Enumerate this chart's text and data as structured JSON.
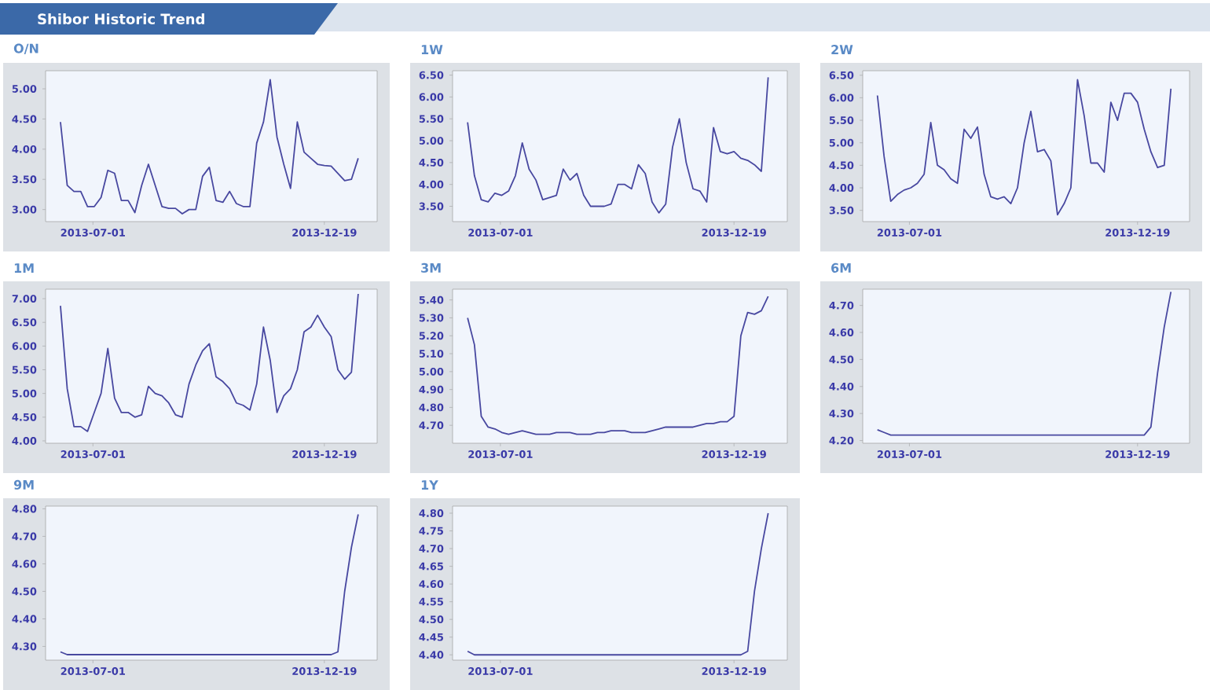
{
  "chart_data": [
    {
      "type": "other",
      "title": "Shibor Historic Trend"
    },
    {
      "type": "line",
      "title": "O/N",
      "color": "#4848a0",
      "marker": "none",
      "xlim": [
        "2013-05-27",
        "2014-01-27"
      ],
      "xticks": [
        "2013-07-01",
        "2013-12-19"
      ],
      "ylim": [
        2.8,
        5.3
      ],
      "yticks": [
        {
          "value": 3.0,
          "label": "3.00"
        },
        {
          "value": 3.5,
          "label": "3.50"
        },
        {
          "value": 4.0,
          "label": "4.00"
        },
        {
          "value": 4.5,
          "label": "4.50"
        },
        {
          "value": 5.0,
          "label": "5.00"
        }
      ],
      "x": [
        "2013-06-07",
        "2013-06-12",
        "2013-06-17",
        "2013-06-22",
        "2013-06-27",
        "2013-07-02",
        "2013-07-07",
        "2013-07-12",
        "2013-07-17",
        "2013-07-22",
        "2013-07-27",
        "2013-08-01",
        "2013-08-06",
        "2013-08-11",
        "2013-08-16",
        "2013-08-21",
        "2013-08-26",
        "2013-08-31",
        "2013-09-05",
        "2013-09-10",
        "2013-09-15",
        "2013-09-20",
        "2013-09-25",
        "2013-09-30",
        "2013-10-05",
        "2013-10-10",
        "2013-10-15",
        "2013-10-20",
        "2013-10-25",
        "2013-10-30",
        "2013-11-04",
        "2013-11-09",
        "2013-11-14",
        "2013-11-19",
        "2013-11-24",
        "2013-11-29",
        "2013-12-04",
        "2013-12-09",
        "2013-12-14",
        "2013-12-19",
        "2013-12-24",
        "2013-12-29",
        "2014-01-03",
        "2014-01-08",
        "2014-01-13"
      ],
      "values": [
        4.45,
        3.4,
        3.3,
        3.3,
        3.05,
        3.05,
        3.2,
        3.65,
        3.6,
        3.15,
        3.15,
        2.95,
        3.4,
        3.75,
        3.4,
        3.05,
        3.02,
        3.02,
        2.93,
        3.0,
        3.0,
        3.55,
        3.7,
        3.15,
        3.12,
        3.3,
        3.1,
        3.05,
        3.05,
        4.1,
        4.45,
        5.15,
        4.2,
        3.75,
        3.35,
        4.45,
        3.95,
        3.85,
        3.75,
        3.73,
        3.72,
        3.6,
        3.48,
        3.5,
        3.85
      ]
    },
    {
      "type": "line",
      "title": "1W",
      "color": "#4848a0",
      "marker": "none",
      "xlim": [
        "2013-05-27",
        "2014-01-27"
      ],
      "xticks": [
        "2013-07-01",
        "2013-12-19"
      ],
      "ylim": [
        3.15,
        6.6
      ],
      "yticks": [
        {
          "value": 3.5,
          "label": "3.50"
        },
        {
          "value": 4.0,
          "label": "4.00"
        },
        {
          "value": 4.5,
          "label": "4.50"
        },
        {
          "value": 5.0,
          "label": "5.00"
        },
        {
          "value": 5.5,
          "label": "5.50"
        },
        {
          "value": 6.0,
          "label": "6.00"
        },
        {
          "value": 6.5,
          "label": "6.50"
        }
      ],
      "x": [
        "2013-06-07",
        "2013-06-12",
        "2013-06-17",
        "2013-06-22",
        "2013-06-27",
        "2013-07-02",
        "2013-07-07",
        "2013-07-12",
        "2013-07-17",
        "2013-07-22",
        "2013-07-27",
        "2013-08-01",
        "2013-08-06",
        "2013-08-11",
        "2013-08-16",
        "2013-08-21",
        "2013-08-26",
        "2013-08-31",
        "2013-09-05",
        "2013-09-10",
        "2013-09-15",
        "2013-09-20",
        "2013-09-25",
        "2013-09-30",
        "2013-10-05",
        "2013-10-10",
        "2013-10-15",
        "2013-10-20",
        "2013-10-25",
        "2013-10-30",
        "2013-11-04",
        "2013-11-09",
        "2013-11-14",
        "2013-11-19",
        "2013-11-24",
        "2013-11-29",
        "2013-12-04",
        "2013-12-09",
        "2013-12-14",
        "2013-12-19",
        "2013-12-24",
        "2013-12-29",
        "2014-01-03",
        "2014-01-08",
        "2014-01-13"
      ],
      "values": [
        5.42,
        4.2,
        3.65,
        3.6,
        3.8,
        3.75,
        3.85,
        4.2,
        4.95,
        4.35,
        4.1,
        3.65,
        3.7,
        3.75,
        4.35,
        4.1,
        4.25,
        3.75,
        3.5,
        3.5,
        3.5,
        3.55,
        4.0,
        4.0,
        3.9,
        4.45,
        4.25,
        3.6,
        3.35,
        3.55,
        4.85,
        5.5,
        4.5,
        3.9,
        3.85,
        3.6,
        5.3,
        4.75,
        4.7,
        4.75,
        4.6,
        4.55,
        4.45,
        4.3,
        6.45
      ]
    },
    {
      "type": "line",
      "title": "2W",
      "color": "#4848a0",
      "marker": "none",
      "xlim": [
        "2013-05-27",
        "2014-01-27"
      ],
      "xticks": [
        "2013-07-01",
        "2013-12-19"
      ],
      "ylim": [
        3.25,
        6.6
      ],
      "yticks": [
        {
          "value": 3.5,
          "label": "3.50"
        },
        {
          "value": 4.0,
          "label": "4.00"
        },
        {
          "value": 4.5,
          "label": "4.50"
        },
        {
          "value": 5.0,
          "label": "5.00"
        },
        {
          "value": 5.5,
          "label": "5.50"
        },
        {
          "value": 6.0,
          "label": "6.00"
        },
        {
          "value": 6.5,
          "label": "6.50"
        }
      ],
      "x": [
        "2013-06-07",
        "2013-06-12",
        "2013-06-17",
        "2013-06-22",
        "2013-06-27",
        "2013-07-02",
        "2013-07-07",
        "2013-07-12",
        "2013-07-17",
        "2013-07-22",
        "2013-07-27",
        "2013-08-01",
        "2013-08-06",
        "2013-08-11",
        "2013-08-16",
        "2013-08-21",
        "2013-08-26",
        "2013-08-31",
        "2013-09-05",
        "2013-09-10",
        "2013-09-15",
        "2013-09-20",
        "2013-09-25",
        "2013-09-30",
        "2013-10-05",
        "2013-10-10",
        "2013-10-15",
        "2013-10-20",
        "2013-10-25",
        "2013-10-30",
        "2013-11-04",
        "2013-11-09",
        "2013-11-14",
        "2013-11-19",
        "2013-11-24",
        "2013-11-29",
        "2013-12-04",
        "2013-12-09",
        "2013-12-14",
        "2013-12-19",
        "2013-12-24",
        "2013-12-29",
        "2014-01-03",
        "2014-01-08",
        "2014-01-13"
      ],
      "values": [
        6.05,
        4.7,
        3.7,
        3.85,
        3.95,
        4.0,
        4.1,
        4.3,
        5.45,
        4.5,
        4.4,
        4.2,
        4.1,
        5.3,
        5.1,
        5.35,
        4.3,
        3.8,
        3.75,
        3.8,
        3.65,
        4.0,
        5.0,
        5.7,
        4.8,
        4.85,
        4.6,
        3.4,
        3.65,
        4.0,
        6.4,
        5.6,
        4.55,
        4.55,
        4.35,
        5.9,
        5.5,
        6.1,
        6.1,
        5.9,
        5.3,
        4.8,
        4.45,
        4.5,
        6.2
      ]
    },
    {
      "type": "line",
      "title": "1M",
      "color": "#4848a0",
      "marker": "none",
      "xlim": [
        "2013-05-27",
        "2014-01-27"
      ],
      "xticks": [
        "2013-07-01",
        "2013-12-19"
      ],
      "ylim": [
        3.95,
        7.2
      ],
      "yticks": [
        {
          "value": 4.0,
          "label": "4.00"
        },
        {
          "value": 4.5,
          "label": "4.50"
        },
        {
          "value": 5.0,
          "label": "5.00"
        },
        {
          "value": 5.5,
          "label": "5.50"
        },
        {
          "value": 6.0,
          "label": "6.00"
        },
        {
          "value": 6.5,
          "label": "6.50"
        },
        {
          "value": 7.0,
          "label": "7.00"
        }
      ],
      "x": [
        "2013-06-07",
        "2013-06-12",
        "2013-06-17",
        "2013-06-22",
        "2013-06-27",
        "2013-07-02",
        "2013-07-07",
        "2013-07-12",
        "2013-07-17",
        "2013-07-22",
        "2013-07-27",
        "2013-08-01",
        "2013-08-06",
        "2013-08-11",
        "2013-08-16",
        "2013-08-21",
        "2013-08-26",
        "2013-08-31",
        "2013-09-05",
        "2013-09-10",
        "2013-09-15",
        "2013-09-20",
        "2013-09-25",
        "2013-09-30",
        "2013-10-05",
        "2013-10-10",
        "2013-10-15",
        "2013-10-20",
        "2013-10-25",
        "2013-10-30",
        "2013-11-04",
        "2013-11-09",
        "2013-11-14",
        "2013-11-19",
        "2013-11-24",
        "2013-11-29",
        "2013-12-04",
        "2013-12-09",
        "2013-12-14",
        "2013-12-19",
        "2013-12-24",
        "2013-12-29",
        "2014-01-03",
        "2014-01-08",
        "2014-01-13"
      ],
      "values": [
        6.85,
        5.1,
        4.3,
        4.3,
        4.2,
        4.6,
        5.0,
        5.95,
        4.9,
        4.6,
        4.6,
        4.5,
        4.55,
        5.15,
        5.0,
        4.95,
        4.8,
        4.55,
        4.5,
        5.2,
        5.6,
        5.9,
        6.05,
        5.35,
        5.25,
        5.1,
        4.8,
        4.75,
        4.65,
        5.2,
        6.4,
        5.7,
        4.6,
        4.95,
        5.1,
        5.5,
        6.3,
        6.4,
        6.65,
        6.4,
        6.2,
        5.5,
        5.3,
        5.45,
        7.1
      ]
    },
    {
      "type": "line",
      "title": "3M",
      "color": "#4848a0",
      "marker": "none",
      "xlim": [
        "2013-05-27",
        "2014-01-27"
      ],
      "xticks": [
        "2013-07-01",
        "2013-12-19"
      ],
      "ylim": [
        4.6,
        5.46
      ],
      "yticks": [
        {
          "value": 4.7,
          "label": "4.70"
        },
        {
          "value": 4.8,
          "label": "4.80"
        },
        {
          "value": 4.9,
          "label": "4.90"
        },
        {
          "value": 5.0,
          "label": "5.00"
        },
        {
          "value": 5.1,
          "label": "5.10"
        },
        {
          "value": 5.2,
          "label": "5.20"
        },
        {
          "value": 5.3,
          "label": "5.30"
        },
        {
          "value": 5.4,
          "label": "5.40"
        }
      ],
      "x": [
        "2013-06-07",
        "2013-06-12",
        "2013-06-17",
        "2013-06-22",
        "2013-06-27",
        "2013-07-02",
        "2013-07-07",
        "2013-07-12",
        "2013-07-17",
        "2013-07-22",
        "2013-07-27",
        "2013-08-01",
        "2013-08-06",
        "2013-08-11",
        "2013-08-16",
        "2013-08-21",
        "2013-08-26",
        "2013-08-31",
        "2013-09-05",
        "2013-09-10",
        "2013-09-15",
        "2013-09-20",
        "2013-09-25",
        "2013-09-30",
        "2013-10-05",
        "2013-10-10",
        "2013-10-15",
        "2013-10-20",
        "2013-10-25",
        "2013-10-30",
        "2013-11-04",
        "2013-11-09",
        "2013-11-14",
        "2013-11-19",
        "2013-11-24",
        "2013-11-29",
        "2013-12-04",
        "2013-12-09",
        "2013-12-14",
        "2013-12-19",
        "2013-12-24",
        "2013-12-29",
        "2014-01-03",
        "2014-01-08",
        "2014-01-13"
      ],
      "values": [
        5.3,
        5.15,
        4.75,
        4.69,
        4.68,
        4.66,
        4.65,
        4.66,
        4.67,
        4.66,
        4.65,
        4.65,
        4.65,
        4.66,
        4.66,
        4.66,
        4.65,
        4.65,
        4.65,
        4.66,
        4.66,
        4.67,
        4.67,
        4.67,
        4.66,
        4.66,
        4.66,
        4.67,
        4.68,
        4.69,
        4.69,
        4.69,
        4.69,
        4.69,
        4.7,
        4.71,
        4.71,
        4.72,
        4.72,
        4.75,
        5.2,
        5.33,
        5.32,
        5.34,
        5.42
      ]
    },
    {
      "type": "line",
      "title": "6M",
      "color": "#4848a0",
      "marker": "none",
      "xlim": [
        "2013-05-27",
        "2014-01-27"
      ],
      "xticks": [
        "2013-07-01",
        "2013-12-19"
      ],
      "ylim": [
        4.19,
        4.76
      ],
      "yticks": [
        {
          "value": 4.2,
          "label": "4.20"
        },
        {
          "value": 4.3,
          "label": "4.30"
        },
        {
          "value": 4.4,
          "label": "4.40"
        },
        {
          "value": 4.5,
          "label": "4.50"
        },
        {
          "value": 4.6,
          "label": "4.60"
        },
        {
          "value": 4.7,
          "label": "4.70"
        }
      ],
      "x": [
        "2013-06-07",
        "2013-06-12",
        "2013-06-17",
        "2013-06-22",
        "2013-06-27",
        "2013-07-02",
        "2013-07-07",
        "2013-07-12",
        "2013-07-17",
        "2013-07-22",
        "2013-07-27",
        "2013-08-01",
        "2013-08-06",
        "2013-08-11",
        "2013-08-16",
        "2013-08-21",
        "2013-08-26",
        "2013-08-31",
        "2013-09-05",
        "2013-09-10",
        "2013-09-15",
        "2013-09-20",
        "2013-09-25",
        "2013-09-30",
        "2013-10-05",
        "2013-10-10",
        "2013-10-15",
        "2013-10-20",
        "2013-10-25",
        "2013-10-30",
        "2013-11-04",
        "2013-11-09",
        "2013-11-14",
        "2013-11-19",
        "2013-11-24",
        "2013-11-29",
        "2013-12-04",
        "2013-12-09",
        "2013-12-14",
        "2013-12-19",
        "2013-12-24",
        "2013-12-29",
        "2014-01-03",
        "2014-01-08",
        "2014-01-13"
      ],
      "values": [
        4.24,
        4.23,
        4.22,
        4.22,
        4.22,
        4.22,
        4.22,
        4.22,
        4.22,
        4.22,
        4.22,
        4.22,
        4.22,
        4.22,
        4.22,
        4.22,
        4.22,
        4.22,
        4.22,
        4.22,
        4.22,
        4.22,
        4.22,
        4.22,
        4.22,
        4.22,
        4.22,
        4.22,
        4.22,
        4.22,
        4.22,
        4.22,
        4.22,
        4.22,
        4.22,
        4.22,
        4.22,
        4.22,
        4.22,
        4.22,
        4.22,
        4.25,
        4.45,
        4.62,
        4.75
      ]
    },
    {
      "type": "line",
      "title": "9M",
      "color": "#4848a0",
      "marker": "none",
      "xlim": [
        "2013-05-27",
        "2014-01-27"
      ],
      "xticks": [
        "2013-07-01",
        "2013-12-19"
      ],
      "ylim": [
        4.25,
        4.81
      ],
      "yticks": [
        {
          "value": 4.3,
          "label": "4.30"
        },
        {
          "value": 4.4,
          "label": "4.40"
        },
        {
          "value": 4.5,
          "label": "4.50"
        },
        {
          "value": 4.6,
          "label": "4.60"
        },
        {
          "value": 4.7,
          "label": "4.70"
        },
        {
          "value": 4.8,
          "label": "4.80"
        }
      ],
      "x": [
        "2013-06-07",
        "2013-06-12",
        "2013-06-17",
        "2013-06-22",
        "2013-06-27",
        "2013-07-02",
        "2013-07-07",
        "2013-07-12",
        "2013-07-17",
        "2013-07-22",
        "2013-07-27",
        "2013-08-01",
        "2013-08-06",
        "2013-08-11",
        "2013-08-16",
        "2013-08-21",
        "2013-08-26",
        "2013-08-31",
        "2013-09-05",
        "2013-09-10",
        "2013-09-15",
        "2013-09-20",
        "2013-09-25",
        "2013-09-30",
        "2013-10-05",
        "2013-10-10",
        "2013-10-15",
        "2013-10-20",
        "2013-10-25",
        "2013-10-30",
        "2013-11-04",
        "2013-11-09",
        "2013-11-14",
        "2013-11-19",
        "2013-11-24",
        "2013-11-29",
        "2013-12-04",
        "2013-12-09",
        "2013-12-14",
        "2013-12-19",
        "2013-12-24",
        "2013-12-29",
        "2014-01-03",
        "2014-01-08",
        "2014-01-13"
      ],
      "values": [
        4.28,
        4.27,
        4.27,
        4.27,
        4.27,
        4.27,
        4.27,
        4.27,
        4.27,
        4.27,
        4.27,
        4.27,
        4.27,
        4.27,
        4.27,
        4.27,
        4.27,
        4.27,
        4.27,
        4.27,
        4.27,
        4.27,
        4.27,
        4.27,
        4.27,
        4.27,
        4.27,
        4.27,
        4.27,
        4.27,
        4.27,
        4.27,
        4.27,
        4.27,
        4.27,
        4.27,
        4.27,
        4.27,
        4.27,
        4.27,
        4.27,
        4.28,
        4.5,
        4.66,
        4.78
      ]
    },
    {
      "type": "line",
      "title": "1Y",
      "color": "#4848a0",
      "marker": "none",
      "xlim": [
        "2013-05-27",
        "2014-01-27"
      ],
      "xticks": [
        "2013-07-01",
        "2013-12-19"
      ],
      "ylim": [
        4.385,
        4.82
      ],
      "yticks": [
        {
          "value": 4.4,
          "label": "4.40"
        },
        {
          "value": 4.45,
          "label": "4.45"
        },
        {
          "value": 4.5,
          "label": "4.50"
        },
        {
          "value": 4.55,
          "label": "4.55"
        },
        {
          "value": 4.6,
          "label": "4.60"
        },
        {
          "value": 4.65,
          "label": "4.65"
        },
        {
          "value": 4.7,
          "label": "4.70"
        },
        {
          "value": 4.75,
          "label": "4.75"
        },
        {
          "value": 4.8,
          "label": "4.80"
        }
      ],
      "x": [
        "2013-06-07",
        "2013-06-12",
        "2013-06-17",
        "2013-06-22",
        "2013-06-27",
        "2013-07-02",
        "2013-07-07",
        "2013-07-12",
        "2013-07-17",
        "2013-07-22",
        "2013-07-27",
        "2013-08-01",
        "2013-08-06",
        "2013-08-11",
        "2013-08-16",
        "2013-08-21",
        "2013-08-26",
        "2013-08-31",
        "2013-09-05",
        "2013-09-10",
        "2013-09-15",
        "2013-09-20",
        "2013-09-25",
        "2013-09-30",
        "2013-10-05",
        "2013-10-10",
        "2013-10-15",
        "2013-10-20",
        "2013-10-25",
        "2013-10-30",
        "2013-11-04",
        "2013-11-09",
        "2013-11-14",
        "2013-11-19",
        "2013-11-24",
        "2013-11-29",
        "2013-12-04",
        "2013-12-09",
        "2013-12-14",
        "2013-12-19",
        "2013-12-24",
        "2013-12-29",
        "2014-01-03",
        "2014-01-08",
        "2014-01-13"
      ],
      "values": [
        4.41,
        4.4,
        4.4,
        4.4,
        4.4,
        4.4,
        4.4,
        4.4,
        4.4,
        4.4,
        4.4,
        4.4,
        4.4,
        4.4,
        4.4,
        4.4,
        4.4,
        4.4,
        4.4,
        4.4,
        4.4,
        4.4,
        4.4,
        4.4,
        4.4,
        4.4,
        4.4,
        4.4,
        4.4,
        4.4,
        4.4,
        4.4,
        4.4,
        4.4,
        4.4,
        4.4,
        4.4,
        4.4,
        4.4,
        4.4,
        4.4,
        4.41,
        4.58,
        4.7,
        4.8
      ]
    }
  ]
}
